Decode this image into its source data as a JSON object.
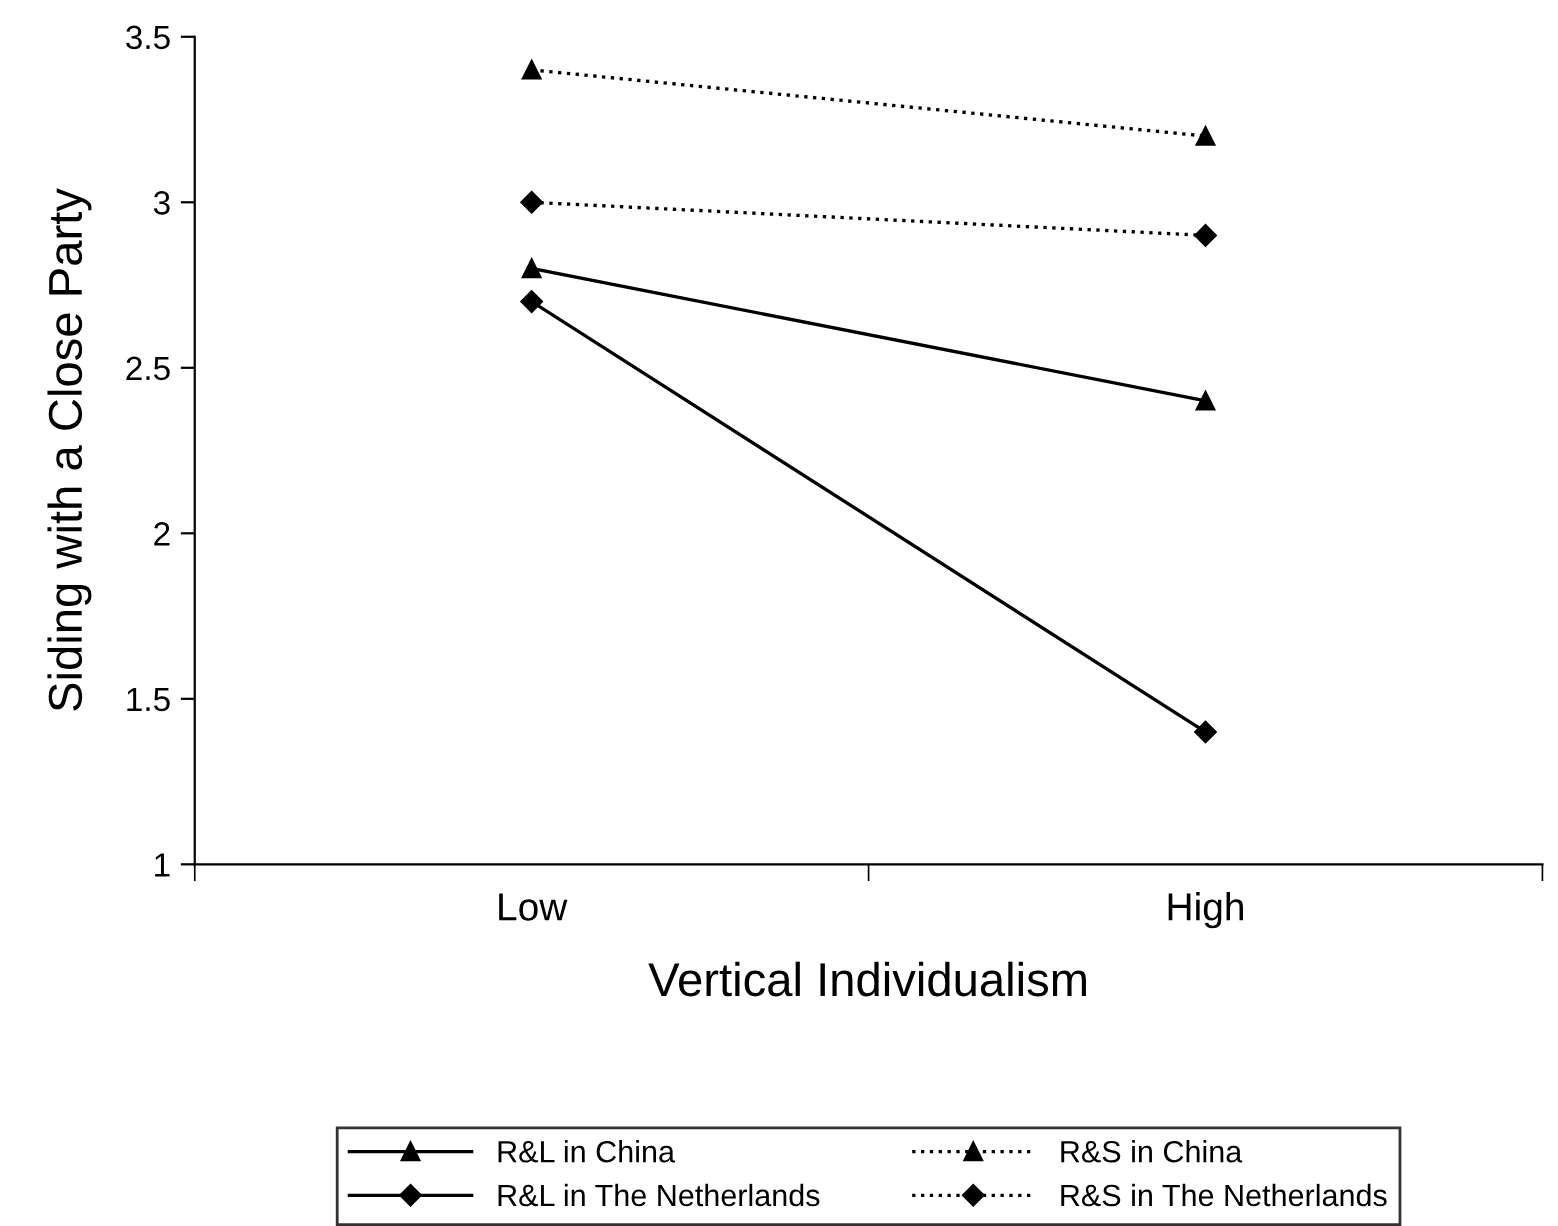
{
  "chart_data": {
    "type": "line",
    "xlabel": "Vertical Individualism",
    "ylabel": "Siding with a Close Party",
    "categories": [
      "Low",
      "High"
    ],
    "ylim": [
      1,
      3.5
    ],
    "yticks": [
      1,
      1.5,
      2,
      2.5,
      3,
      3.5
    ],
    "grid": false,
    "legend": "bottom",
    "series": [
      {
        "name": "R&L in China",
        "color": "#000000",
        "marker": "triangle",
        "line_style": "solid",
        "values": [
          2.8,
          2.4
        ]
      },
      {
        "name": "R&L in The Netherlands",
        "color": "#000000",
        "marker": "diamond",
        "line_style": "solid",
        "values": [
          2.7,
          1.4
        ]
      },
      {
        "name": "R&S in China",
        "color": "#000000",
        "marker": "triangle",
        "line_style": "dotted",
        "values": [
          3.4,
          3.2
        ]
      },
      {
        "name": "R&S in The Netherlands",
        "color": "#000000",
        "marker": "diamond",
        "line_style": "dotted",
        "values": [
          3.0,
          2.9
        ]
      }
    ]
  }
}
